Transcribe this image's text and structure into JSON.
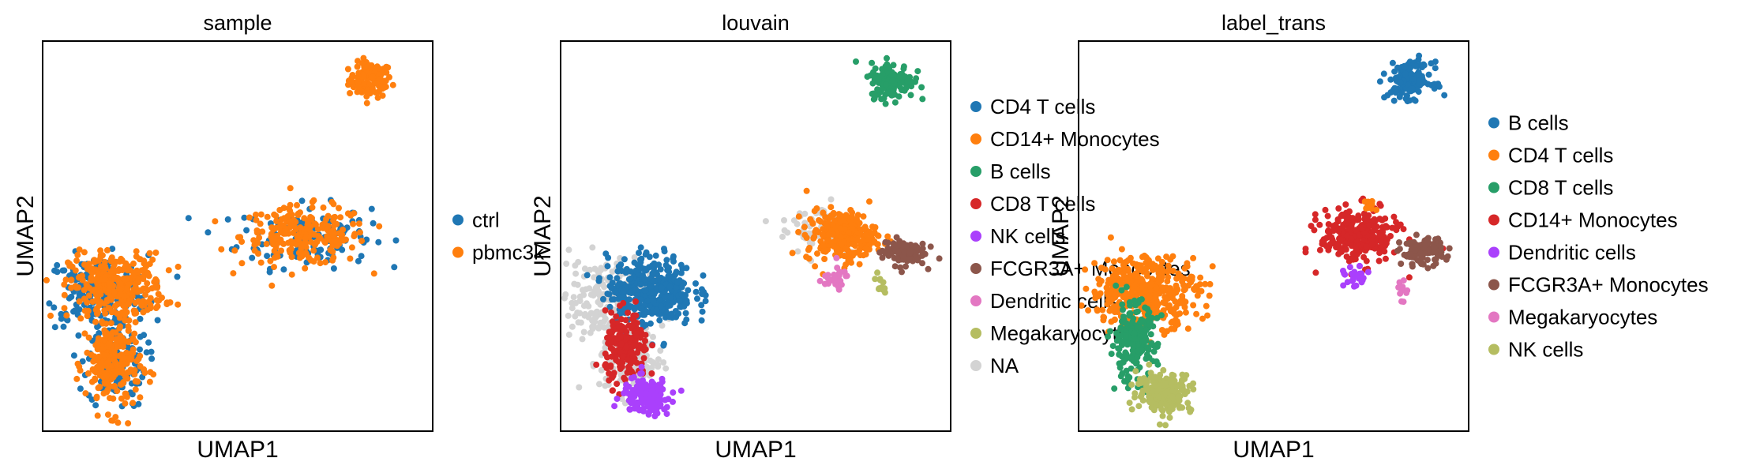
{
  "chart_data": [
    {
      "type": "scatter",
      "title": "sample",
      "xlabel": "UMAP1",
      "ylabel": "UMAP2",
      "grid": false,
      "legend_position": "right",
      "legend": [
        {
          "label": "ctrl",
          "color": "#1f77b4"
        },
        {
          "label": "pbmc3k",
          "color": "#ff7f0e"
        }
      ],
      "clusters": [
        {
          "group": "pbmc3k",
          "x": 8.4,
          "y": 9.0,
          "rx": 0.55,
          "ry": 0.45,
          "n": 110
        },
        {
          "group": "ctrl",
          "x": 6.7,
          "y": 5.0,
          "rx": 1.7,
          "ry": 0.8,
          "n": 140
        },
        {
          "group": "pbmc3k",
          "x": 6.7,
          "y": 5.0,
          "rx": 1.6,
          "ry": 0.75,
          "n": 230
        },
        {
          "group": "ctrl",
          "x": 1.4,
          "y": 3.6,
          "rx": 1.3,
          "ry": 0.9,
          "n": 190
        },
        {
          "group": "ctrl",
          "x": 1.9,
          "y": 1.8,
          "rx": 0.75,
          "ry": 1.2,
          "n": 120
        },
        {
          "group": "pbmc3k",
          "x": 1.9,
          "y": 3.7,
          "rx": 1.2,
          "ry": 0.85,
          "n": 330
        },
        {
          "group": "pbmc3k",
          "x": 1.8,
          "y": 1.7,
          "rx": 0.7,
          "ry": 1.2,
          "n": 230
        }
      ]
    },
    {
      "type": "scatter",
      "title": "louvain",
      "xlabel": "UMAP1",
      "ylabel": "UMAP2",
      "grid": false,
      "legend_position": "right",
      "legend": [
        {
          "label": "CD4 T cells",
          "color": "#1f77b4"
        },
        {
          "label": "CD14+ Monocytes",
          "color": "#ff7f0e"
        },
        {
          "label": "B cells",
          "color": "#279e68"
        },
        {
          "label": "CD8 T cells",
          "color": "#d62728"
        },
        {
          "label": "NK cells",
          "color": "#aa40fc"
        },
        {
          "label": "FCGR3A+ Monocytes",
          "color": "#8c564b"
        },
        {
          "label": "Dendritic cells",
          "color": "#e377c2"
        },
        {
          "label": "Megakaryocytes",
          "color": "#b5bd61"
        },
        {
          "label": "NA",
          "color": "#d3d3d3"
        }
      ],
      "clusters": [
        {
          "group": "NA",
          "x": 1.1,
          "y": 3.4,
          "rx": 1.2,
          "ry": 1.0,
          "n": 200
        },
        {
          "group": "NA",
          "x": 1.8,
          "y": 1.8,
          "rx": 0.8,
          "ry": 0.9,
          "n": 120
        },
        {
          "group": "NA",
          "x": 6.7,
          "y": 5.2,
          "rx": 1.1,
          "ry": 0.7,
          "n": 70
        },
        {
          "group": "B cells",
          "x": 8.5,
          "y": 9.0,
          "rx": 0.55,
          "ry": 0.45,
          "n": 150
        },
        {
          "group": "CD14+ Monocytes",
          "x": 7.2,
          "y": 5.0,
          "rx": 0.9,
          "ry": 0.65,
          "n": 260
        },
        {
          "group": "FCGR3A+ Monocytes",
          "x": 8.8,
          "y": 4.6,
          "rx": 0.55,
          "ry": 0.35,
          "n": 110
        },
        {
          "group": "Dendritic cells",
          "x": 7.0,
          "y": 3.9,
          "rx": 0.4,
          "ry": 0.3,
          "n": 30
        },
        {
          "group": "Megakaryocytes",
          "x": 8.2,
          "y": 3.8,
          "rx": 0.15,
          "ry": 0.3,
          "n": 12
        },
        {
          "group": "CD4 T cells",
          "x": 2.3,
          "y": 3.6,
          "rx": 1.1,
          "ry": 0.9,
          "n": 380
        },
        {
          "group": "CD8 T cells",
          "x": 1.7,
          "y": 2.1,
          "rx": 0.55,
          "ry": 0.9,
          "n": 180
        },
        {
          "group": "NK cells",
          "x": 2.2,
          "y": 0.9,
          "rx": 0.6,
          "ry": 0.45,
          "n": 170
        }
      ]
    },
    {
      "type": "scatter",
      "title": "label_trans",
      "xlabel": "UMAP1",
      "ylabel": "UMAP2",
      "grid": false,
      "legend_position": "right",
      "legend": [
        {
          "label": "B cells",
          "color": "#1f77b4"
        },
        {
          "label": "CD4 T cells",
          "color": "#ff7f0e"
        },
        {
          "label": "CD8 T cells",
          "color": "#279e68"
        },
        {
          "label": "CD14+ Monocytes",
          "color": "#d62728"
        },
        {
          "label": "Dendritic cells",
          "color": "#aa40fc"
        },
        {
          "label": "FCGR3A+ Monocytes",
          "color": "#8c564b"
        },
        {
          "label": "Megakaryocytes",
          "color": "#e377c2"
        },
        {
          "label": "NK cells",
          "color": "#b5bd61"
        }
      ],
      "clusters": [
        {
          "group": "B cells",
          "x": 8.5,
          "y": 9.0,
          "rx": 0.55,
          "ry": 0.45,
          "n": 150
        },
        {
          "group": "CD14+ Monocytes",
          "x": 7.2,
          "y": 5.0,
          "rx": 1.0,
          "ry": 0.7,
          "n": 280
        },
        {
          "group": "FCGR3A+ Monocytes",
          "x": 8.8,
          "y": 4.6,
          "rx": 0.55,
          "ry": 0.35,
          "n": 110
        },
        {
          "group": "Dendritic cells",
          "x": 7.1,
          "y": 3.9,
          "rx": 0.3,
          "ry": 0.3,
          "n": 25
        },
        {
          "group": "Megakaryocytes",
          "x": 8.3,
          "y": 3.6,
          "rx": 0.12,
          "ry": 0.25,
          "n": 10
        },
        {
          "group": "CD4 T cells",
          "x": 7.5,
          "y": 5.8,
          "rx": 0.2,
          "ry": 0.2,
          "n": 10
        },
        {
          "group": "CD4 T cells",
          "x": 1.7,
          "y": 3.6,
          "rx": 1.4,
          "ry": 0.9,
          "n": 420
        },
        {
          "group": "CD8 T cells",
          "x": 1.4,
          "y": 2.3,
          "rx": 0.6,
          "ry": 1.0,
          "n": 200
        },
        {
          "group": "NK cells",
          "x": 2.2,
          "y": 1.0,
          "rx": 0.7,
          "ry": 0.5,
          "n": 200
        }
      ]
    }
  ]
}
